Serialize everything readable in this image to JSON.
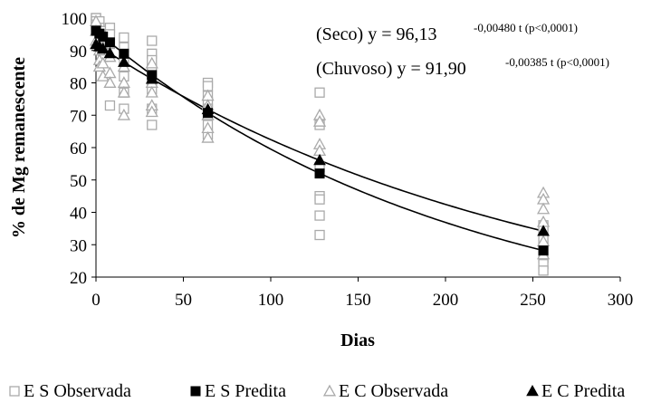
{
  "chart_data": {
    "type": "scatter",
    "xlabel": "Dias",
    "ylabel": "% de Mg remanescente",
    "xlim": [
      0,
      300
    ],
    "ylim": [
      20,
      100
    ],
    "xticks": [
      0,
      50,
      100,
      150,
      200,
      250,
      300
    ],
    "yticks": [
      20,
      30,
      40,
      50,
      60,
      70,
      80,
      90,
      100
    ],
    "grid": false,
    "legend_position": "bottom",
    "annotations": [
      {
        "name": "seco",
        "prefix": "(Seco) y = 96,13",
        "exponent": "-0,00480 t (p<0,0001)"
      },
      {
        "name": "chuvoso",
        "prefix": "(Chuvoso) y = 91,90",
        "exponent": "-0,00385 t (p<0,0001)"
      }
    ],
    "series": [
      {
        "name": "E S Observada",
        "marker": "open-square",
        "color": "#aaaaaa",
        "points": [
          [
            0,
            100
          ],
          [
            0,
            100
          ],
          [
            0,
            99
          ],
          [
            0,
            98
          ],
          [
            2,
            99
          ],
          [
            2,
            97
          ],
          [
            2,
            95
          ],
          [
            2,
            92
          ],
          [
            4,
            96
          ],
          [
            4,
            93
          ],
          [
            4,
            90
          ],
          [
            4,
            88
          ],
          [
            8,
            97
          ],
          [
            8,
            95
          ],
          [
            8,
            92
          ],
          [
            8,
            73
          ],
          [
            16,
            94
          ],
          [
            16,
            91
          ],
          [
            16,
            87
          ],
          [
            16,
            82
          ],
          [
            16,
            77
          ],
          [
            16,
            72
          ],
          [
            32,
            93
          ],
          [
            32,
            89
          ],
          [
            32,
            87
          ],
          [
            32,
            84
          ],
          [
            32,
            81
          ],
          [
            32,
            78
          ],
          [
            32,
            72
          ],
          [
            32,
            67
          ],
          [
            64,
            80
          ],
          [
            64,
            79
          ],
          [
            64,
            76
          ],
          [
            64,
            74
          ],
          [
            64,
            72
          ],
          [
            64,
            70
          ],
          [
            64,
            67
          ],
          [
            64,
            64
          ],
          [
            128,
            77
          ],
          [
            128,
            67
          ],
          [
            128,
            54
          ],
          [
            128,
            45
          ],
          [
            128,
            44
          ],
          [
            128,
            39
          ],
          [
            128,
            33
          ],
          [
            256,
            36
          ],
          [
            256,
            35
          ],
          [
            256,
            32
          ],
          [
            256,
            29
          ],
          [
            256,
            26
          ],
          [
            256,
            24
          ],
          [
            256,
            22
          ]
        ]
      },
      {
        "name": "E S Predita",
        "marker": "filled-square",
        "color": "#000000",
        "points": [
          [
            0,
            96.1
          ],
          [
            2,
            95.2
          ],
          [
            4,
            94.3
          ],
          [
            8,
            92.5
          ],
          [
            16,
            89.0
          ],
          [
            32,
            82.4
          ],
          [
            64,
            70.7
          ],
          [
            128,
            52.0
          ],
          [
            256,
            28.2
          ]
        ]
      },
      {
        "name": "E C Observada",
        "marker": "open-triangle",
        "color": "#aaaaaa",
        "points": [
          [
            0,
            99
          ],
          [
            0,
            96
          ],
          [
            0,
            93
          ],
          [
            2,
            94
          ],
          [
            2,
            90
          ],
          [
            2,
            87
          ],
          [
            2,
            85
          ],
          [
            4,
            91
          ],
          [
            4,
            86
          ],
          [
            4,
            82
          ],
          [
            8,
            88
          ],
          [
            8,
            83
          ],
          [
            8,
            80
          ],
          [
            16,
            85
          ],
          [
            16,
            80
          ],
          [
            16,
            77
          ],
          [
            16,
            70
          ],
          [
            32,
            86
          ],
          [
            32,
            80
          ],
          [
            32,
            77
          ],
          [
            32,
            73
          ],
          [
            32,
            71
          ],
          [
            64,
            76
          ],
          [
            64,
            73
          ],
          [
            64,
            70
          ],
          [
            64,
            66
          ],
          [
            64,
            63
          ],
          [
            128,
            70
          ],
          [
            128,
            68
          ],
          [
            128,
            61
          ],
          [
            128,
            59
          ],
          [
            256,
            46
          ],
          [
            256,
            44
          ],
          [
            256,
            41
          ],
          [
            256,
            37
          ],
          [
            256,
            31
          ],
          [
            256,
            27
          ]
        ]
      },
      {
        "name": "E C Predita",
        "marker": "filled-triangle",
        "color": "#000000",
        "points": [
          [
            0,
            91.9
          ],
          [
            2,
            91.2
          ],
          [
            4,
            90.5
          ],
          [
            8,
            89.1
          ],
          [
            16,
            86.4
          ],
          [
            32,
            81.2
          ],
          [
            64,
            71.8
          ],
          [
            128,
            56.1
          ],
          [
            256,
            34.2
          ]
        ]
      }
    ]
  }
}
